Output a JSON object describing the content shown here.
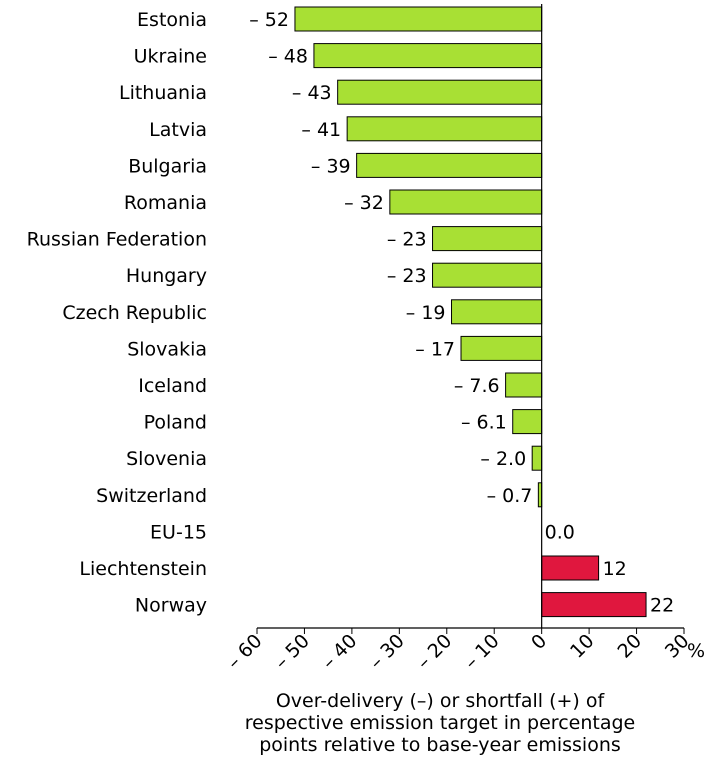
{
  "chart_data": {
    "type": "bar",
    "orientation": "horizontal",
    "categories": [
      "Estonia",
      "Ukraine",
      "Lithuania",
      "Latvia",
      "Bulgaria",
      "Romania",
      "Russian Federation",
      "Hungary",
      "Czech Republic",
      "Slovakia",
      "Iceland",
      "Poland",
      "Slovenia",
      "Switzerland",
      "EU-15",
      "Liechtenstein",
      "Norway"
    ],
    "values": [
      -52,
      -48,
      -43,
      -41,
      -39,
      -32,
      -23,
      -23,
      -19,
      -17,
      -7.6,
      -6.1,
      -2.0,
      -0.7,
      0.0,
      12,
      22
    ],
    "value_labels": [
      "– 52",
      "– 48",
      "– 43",
      "– 41",
      "– 39",
      "– 32",
      "– 23",
      "– 23",
      "– 19",
      "– 17",
      "– 7.6",
      "– 6.1",
      "– 2.0",
      "– 0.7",
      "0.0",
      "12",
      "22"
    ],
    "xlim": [
      -60,
      30
    ],
    "xticks": [
      -60,
      -50,
      -40,
      -30,
      -20,
      -10,
      0,
      10,
      20,
      30
    ],
    "xtick_labels": [
      "– 60",
      "– 50",
      "– 40",
      "– 30",
      "– 20",
      "– 10",
      "0",
      "10",
      "20",
      "30"
    ],
    "xlabel": "Over-delivery (–) or shortfall (+) of respective emission target in percentage points relative to base-year emissions",
    "unit": "%",
    "colors": {
      "negative": "#a8e034",
      "positive": "#e0173e",
      "outline": "#000000"
    },
    "grid": false,
    "legend": "none"
  }
}
